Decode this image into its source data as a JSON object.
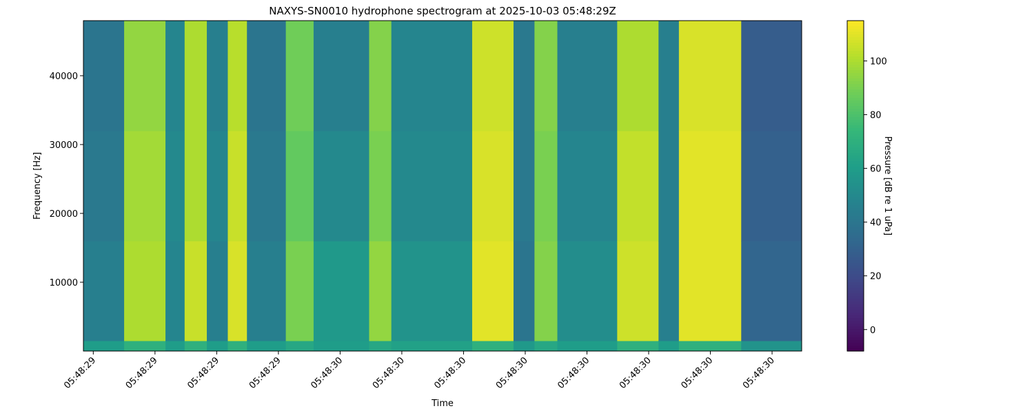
{
  "chart_data": {
    "type": "spectrogram",
    "title": "NAXYS-SN0010 hydrophone spectrogram at 2025-10-03 05:48:29Z",
    "xlabel": "Time",
    "ylabel": "Frequency [Hz]",
    "colorbar_label": "Pressure [dB re 1 uPa]",
    "colormap": "viridis",
    "xlim": [
      29.584,
      30.748
    ],
    "ylim": [
      0,
      48000
    ],
    "clim": [
      -8,
      115
    ],
    "xticks": [
      {
        "value": 29.6,
        "label": "05:48:29"
      },
      {
        "value": 29.7,
        "label": "05:48:29"
      },
      {
        "value": 29.8,
        "label": "05:48:29"
      },
      {
        "value": 29.9,
        "label": "05:48:29"
      },
      {
        "value": 30.0,
        "label": "05:48:30"
      },
      {
        "value": 30.1,
        "label": "05:48:30"
      },
      {
        "value": 30.2,
        "label": "05:48:30"
      },
      {
        "value": 30.3,
        "label": "05:48:30"
      },
      {
        "value": 30.4,
        "label": "05:48:30"
      },
      {
        "value": 30.5,
        "label": "05:48:30"
      },
      {
        "value": 30.6,
        "label": "05:48:30"
      },
      {
        "value": 30.7,
        "label": "05:48:30"
      }
    ],
    "yticks": [
      10000,
      20000,
      30000,
      40000
    ],
    "cticks": [
      0,
      20,
      40,
      60,
      80,
      100
    ],
    "xbins": [
      29.584,
      29.65,
      29.717,
      29.748,
      29.784,
      29.818,
      29.849,
      29.912,
      29.957,
      30.047,
      30.083,
      30.214,
      30.281,
      30.315,
      30.352,
      30.449,
      30.516,
      30.549,
      30.65,
      30.748
    ],
    "ybins": [
      0,
      1500,
      16000,
      32000,
      48000
    ],
    "values": [
      [
        60,
        45,
        42,
        40
      ],
      [
        70,
        100,
        98,
        95
      ],
      [
        60,
        48,
        50,
        48
      ],
      [
        70,
        105,
        100,
        100
      ],
      [
        60,
        45,
        48,
        45
      ],
      [
        70,
        108,
        105,
        102
      ],
      [
        60,
        45,
        42,
        40
      ],
      [
        65,
        90,
        85,
        88
      ],
      [
        60,
        58,
        50,
        45
      ],
      [
        65,
        95,
        90,
        92
      ],
      [
        62,
        55,
        50,
        48
      ],
      [
        70,
        110,
        108,
        106
      ],
      [
        58,
        40,
        42,
        42
      ],
      [
        65,
        92,
        90,
        92
      ],
      [
        60,
        52,
        48,
        45
      ],
      [
        70,
        106,
        104,
        100
      ],
      [
        60,
        45,
        45,
        45
      ],
      [
        70,
        110,
        110,
        108
      ],
      [
        55,
        32,
        30,
        28
      ]
    ]
  }
}
